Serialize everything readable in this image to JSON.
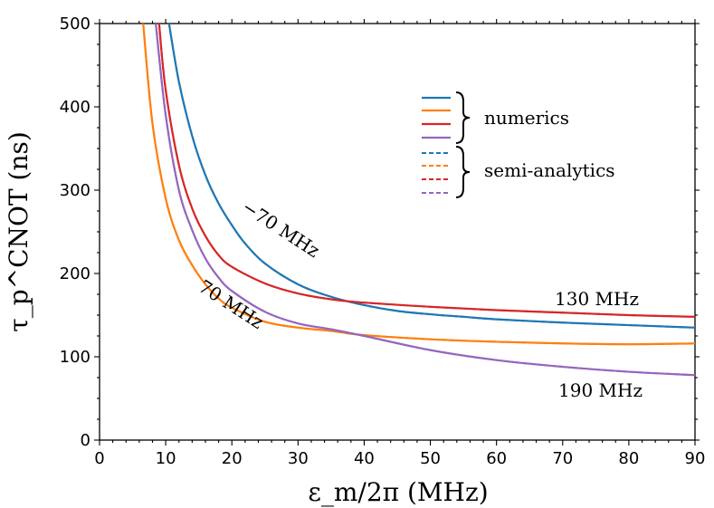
{
  "chart_data": {
    "type": "line",
    "xlabel": "ε_m/2π (MHz)",
    "ylabel": "τ_p^CNOT (ns)",
    "xlim": [
      0,
      90
    ],
    "ylim": [
      0,
      500
    ],
    "xticks": [
      "0",
      "10",
      "20",
      "30",
      "40",
      "50",
      "60",
      "70",
      "80",
      "90"
    ],
    "yticks": [
      "0",
      "100",
      "200",
      "300",
      "400",
      "500"
    ],
    "grid": false,
    "legend": {
      "placement": "top-right",
      "groups": [
        {
          "label": "numerics",
          "style": "solid"
        },
        {
          "label": "semi-analytics",
          "style": "dashed"
        }
      ]
    },
    "annotations": [
      {
        "text": "−70 MHz",
        "series": 0
      },
      {
        "text": "70 MHz",
        "series": 1
      },
      {
        "text": "130 MHz",
        "series": 2
      },
      {
        "text": "190 MHz",
        "series": 3
      }
    ],
    "series": [
      {
        "name": "−70 MHz",
        "color": "#1f77b4",
        "x": [
          10.5,
          12,
          14,
          16,
          18,
          20,
          22,
          25,
          30,
          35,
          40,
          45,
          50,
          55,
          60,
          70,
          80,
          90
        ],
        "y": [
          500,
          430,
          365,
          318,
          284,
          258,
          236,
          212,
          187,
          172,
          162,
          155,
          151,
          148,
          145,
          141,
          138,
          135
        ]
      },
      {
        "name": "70 MHz",
        "color": "#ff7f0e",
        "x": [
          6.6,
          8,
          10,
          12,
          14,
          16,
          18,
          20,
          25,
          30,
          35,
          40,
          50,
          60,
          70,
          80,
          90
        ],
        "y": [
          500,
          380,
          290,
          240,
          210,
          187,
          170,
          159,
          142,
          135,
          131,
          126,
          121,
          118,
          116,
          115,
          116
        ]
      },
      {
        "name": "130 MHz",
        "color": "#d62728",
        "x": [
          9,
          10,
          12,
          14,
          16,
          18,
          20,
          25,
          30,
          35,
          40,
          50,
          60,
          70,
          80,
          90
        ],
        "y": [
          500,
          420,
          330,
          278,
          245,
          222,
          208,
          188,
          176,
          169,
          165,
          160,
          156,
          153,
          150,
          148
        ]
      },
      {
        "name": "190 MHz",
        "color": "#9467bd",
        "x": [
          8.5,
          10,
          12,
          14,
          16,
          18,
          20,
          25,
          30,
          35,
          40,
          50,
          60,
          70,
          80,
          90
        ],
        "y": [
          500,
          390,
          300,
          252,
          218,
          195,
          179,
          154,
          140,
          133,
          125,
          108,
          96,
          88,
          82,
          78
        ]
      }
    ]
  }
}
